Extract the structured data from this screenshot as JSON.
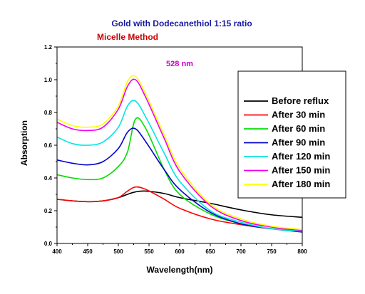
{
  "chart_data": {
    "type": "line",
    "title": "Gold with Dodecanethiol 1:15 ratio",
    "subtitle": "Micelle Method",
    "annotation": "528 nm",
    "xlabel": "Wavelength(nm)",
    "ylabel": "Absorption",
    "xlim": [
      400,
      800
    ],
    "ylim": [
      0.0,
      1.2
    ],
    "xticks": [
      "400",
      "450",
      "500",
      "550",
      "600",
      "650",
      "700",
      "750",
      "800"
    ],
    "yticks": [
      "0.0",
      "0.2",
      "0.4",
      "0.6",
      "0.8",
      "1.0",
      "1.2"
    ],
    "grid": false,
    "legend_position": "top-right",
    "colors": {
      "title": "#1a1aa0",
      "subtitle": "#cc0000",
      "annotation": "#cc00cc"
    },
    "x": [
      400,
      425,
      450,
      475,
      500,
      515,
      528,
      545,
      575,
      600,
      650,
      700,
      750,
      800
    ],
    "series": [
      {
        "name": "Before reflux",
        "color": "#000000",
        "values": [
          0.27,
          0.26,
          0.255,
          0.26,
          0.28,
          0.3,
          0.315,
          0.32,
          0.305,
          0.28,
          0.245,
          0.205,
          0.175,
          0.16
        ]
      },
      {
        "name": "After 30 min",
        "color": "#ff0000",
        "values": [
          0.27,
          0.26,
          0.255,
          0.26,
          0.28,
          0.32,
          0.345,
          0.33,
          0.27,
          0.215,
          0.15,
          0.115,
          0.09,
          0.08
        ]
      },
      {
        "name": "After 60 min",
        "color": "#00dd00",
        "values": [
          0.42,
          0.4,
          0.39,
          0.4,
          0.47,
          0.56,
          0.76,
          0.7,
          0.45,
          0.3,
          0.18,
          0.12,
          0.09,
          0.07
        ]
      },
      {
        "name": "After 90 min",
        "color": "#0000cc",
        "values": [
          0.51,
          0.49,
          0.48,
          0.5,
          0.58,
          0.68,
          0.7,
          0.62,
          0.45,
          0.33,
          0.19,
          0.12,
          0.09,
          0.07
        ]
      },
      {
        "name": "After 120 min",
        "color": "#00e5e5",
        "values": [
          0.65,
          0.61,
          0.6,
          0.62,
          0.71,
          0.84,
          0.87,
          0.77,
          0.55,
          0.38,
          0.2,
          0.13,
          0.09,
          0.075
        ]
      },
      {
        "name": "After 150 min",
        "color": "#ee00ee",
        "values": [
          0.74,
          0.7,
          0.69,
          0.71,
          0.82,
          0.96,
          1.0,
          0.89,
          0.64,
          0.44,
          0.23,
          0.14,
          0.1,
          0.08
        ]
      },
      {
        "name": "After 180 min",
        "color": "#ffff00",
        "values": [
          0.76,
          0.72,
          0.71,
          0.73,
          0.84,
          0.99,
          1.02,
          0.91,
          0.66,
          0.46,
          0.24,
          0.15,
          0.105,
          0.085
        ]
      }
    ]
  }
}
